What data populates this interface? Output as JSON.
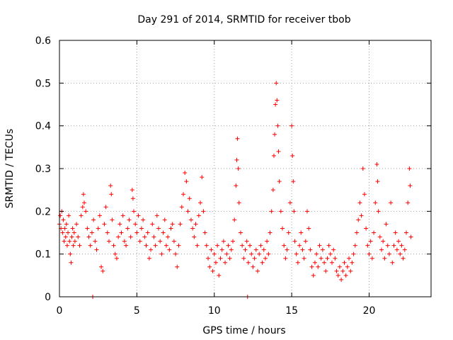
{
  "chart_data": {
    "type": "scatter",
    "title": "Day 291 of 2014, SRMTID for receiver tbob",
    "xlabel": "GPS time / hours",
    "ylabel": "SRMTID / TECUs",
    "xlim": [
      0,
      24
    ],
    "ylim": [
      0,
      0.6
    ],
    "xticks": [
      0,
      5,
      10,
      15,
      20
    ],
    "yticks": [
      0,
      0.1,
      0.2,
      0.3,
      0.4,
      0.5,
      0.6
    ],
    "ytick_labels": [
      "0",
      "0.1",
      "0.2",
      "0.3",
      "0.4",
      "0.5",
      "0.6"
    ],
    "grid": true,
    "marker": "+",
    "series": [
      {
        "name": "SRMTID",
        "color": "#ff0000",
        "points": [
          [
            0.0,
            0.17
          ],
          [
            0.05,
            0.19
          ],
          [
            0.1,
            0.16
          ],
          [
            0.15,
            0.2
          ],
          [
            0.2,
            0.15
          ],
          [
            0.25,
            0.18
          ],
          [
            0.3,
            0.13
          ],
          [
            0.35,
            0.16
          ],
          [
            0.4,
            0.14
          ],
          [
            0.45,
            0.17
          ],
          [
            0.5,
            0.12
          ],
          [
            0.55,
            0.15
          ],
          [
            0.6,
            0.19
          ],
          [
            0.65,
            0.13
          ],
          [
            0.7,
            0.1
          ],
          [
            0.75,
            0.08
          ],
          [
            0.8,
            0.14
          ],
          [
            0.85,
            0.16
          ],
          [
            0.9,
            0.12
          ],
          [
            0.95,
            0.15
          ],
          [
            1.0,
            0.13
          ],
          [
            1.1,
            0.17
          ],
          [
            1.2,
            0.14
          ],
          [
            1.3,
            0.12
          ],
          [
            1.4,
            0.19
          ],
          [
            1.5,
            0.21
          ],
          [
            1.55,
            0.24
          ],
          [
            1.6,
            0.22
          ],
          [
            1.7,
            0.2
          ],
          [
            1.8,
            0.16
          ],
          [
            1.9,
            0.14
          ],
          [
            2.0,
            0.12
          ],
          [
            2.1,
            0.15
          ],
          [
            2.15,
            0.0
          ],
          [
            2.2,
            0.18
          ],
          [
            2.3,
            0.13
          ],
          [
            2.4,
            0.11
          ],
          [
            2.5,
            0.16
          ],
          [
            2.6,
            0.19
          ],
          [
            2.7,
            0.07
          ],
          [
            2.8,
            0.06
          ],
          [
            2.9,
            0.17
          ],
          [
            3.0,
            0.21
          ],
          [
            3.1,
            0.15
          ],
          [
            3.2,
            0.13
          ],
          [
            3.3,
            0.26
          ],
          [
            3.35,
            0.24
          ],
          [
            3.4,
            0.18
          ],
          [
            3.5,
            0.12
          ],
          [
            3.6,
            0.1
          ],
          [
            3.7,
            0.09
          ],
          [
            3.8,
            0.14
          ],
          [
            3.9,
            0.17
          ],
          [
            4.0,
            0.15
          ],
          [
            4.1,
            0.19
          ],
          [
            4.2,
            0.13
          ],
          [
            4.3,
            0.12
          ],
          [
            4.4,
            0.16
          ],
          [
            4.5,
            0.18
          ],
          [
            4.6,
            0.14
          ],
          [
            4.7,
            0.25
          ],
          [
            4.75,
            0.23
          ],
          [
            4.8,
            0.2
          ],
          [
            4.9,
            0.17
          ],
          [
            5.0,
            0.15
          ],
          [
            5.1,
            0.19
          ],
          [
            5.2,
            0.13
          ],
          [
            5.3,
            0.16
          ],
          [
            5.4,
            0.18
          ],
          [
            5.5,
            0.14
          ],
          [
            5.6,
            0.12
          ],
          [
            5.7,
            0.15
          ],
          [
            5.8,
            0.09
          ],
          [
            5.9,
            0.11
          ],
          [
            6.0,
            0.17
          ],
          [
            6.1,
            0.14
          ],
          [
            6.2,
            0.12
          ],
          [
            6.3,
            0.19
          ],
          [
            6.4,
            0.16
          ],
          [
            6.5,
            0.13
          ],
          [
            6.6,
            0.1
          ],
          [
            6.7,
            0.15
          ],
          [
            6.8,
            0.18
          ],
          [
            6.9,
            0.12
          ],
          [
            7.0,
            0.14
          ],
          [
            7.1,
            0.11
          ],
          [
            7.2,
            0.16
          ],
          [
            7.3,
            0.17
          ],
          [
            7.4,
            0.13
          ],
          [
            7.5,
            0.1
          ],
          [
            7.6,
            0.07
          ],
          [
            7.7,
            0.12
          ],
          [
            7.8,
            0.17
          ],
          [
            7.9,
            0.21
          ],
          [
            8.0,
            0.24
          ],
          [
            8.1,
            0.29
          ],
          [
            8.2,
            0.27
          ],
          [
            8.3,
            0.2
          ],
          [
            8.4,
            0.23
          ],
          [
            8.5,
            0.18
          ],
          [
            8.6,
            0.16
          ],
          [
            8.7,
            0.14
          ],
          [
            8.8,
            0.17
          ],
          [
            8.9,
            0.12
          ],
          [
            9.0,
            0.19
          ],
          [
            9.1,
            0.22
          ],
          [
            9.2,
            0.28
          ],
          [
            9.3,
            0.2
          ],
          [
            9.4,
            0.15
          ],
          [
            9.5,
            0.12
          ],
          [
            9.6,
            0.09
          ],
          [
            9.7,
            0.07
          ],
          [
            9.8,
            0.11
          ],
          [
            9.9,
            0.06
          ],
          [
            10.0,
            0.1
          ],
          [
            10.1,
            0.08
          ],
          [
            10.2,
            0.12
          ],
          [
            10.3,
            0.05
          ],
          [
            10.4,
            0.09
          ],
          [
            10.5,
            0.11
          ],
          [
            10.6,
            0.13
          ],
          [
            10.7,
            0.08
          ],
          [
            10.8,
            0.1
          ],
          [
            10.9,
            0.12
          ],
          [
            11.0,
            0.09
          ],
          [
            11.1,
            0.11
          ],
          [
            11.2,
            0.13
          ],
          [
            11.3,
            0.18
          ],
          [
            11.4,
            0.26
          ],
          [
            11.45,
            0.32
          ],
          [
            11.5,
            0.37
          ],
          [
            11.55,
            0.3
          ],
          [
            11.6,
            0.22
          ],
          [
            11.7,
            0.15
          ],
          [
            11.8,
            0.12
          ],
          [
            11.9,
            0.09
          ],
          [
            12.0,
            0.11
          ],
          [
            12.1,
            0.13
          ],
          [
            12.15,
            0.0
          ],
          [
            12.2,
            0.08
          ],
          [
            12.3,
            0.12
          ],
          [
            12.4,
            0.1
          ],
          [
            12.5,
            0.07
          ],
          [
            12.6,
            0.09
          ],
          [
            12.7,
            0.11
          ],
          [
            12.8,
            0.06
          ],
          [
            12.9,
            0.1
          ],
          [
            13.0,
            0.12
          ],
          [
            13.1,
            0.08
          ],
          [
            13.2,
            0.11
          ],
          [
            13.3,
            0.09
          ],
          [
            13.4,
            0.13
          ],
          [
            13.5,
            0.1
          ],
          [
            13.6,
            0.15
          ],
          [
            13.7,
            0.2
          ],
          [
            13.8,
            0.25
          ],
          [
            13.85,
            0.33
          ],
          [
            13.9,
            0.38
          ],
          [
            13.95,
            0.45
          ],
          [
            14.0,
            0.5
          ],
          [
            14.05,
            0.46
          ],
          [
            14.1,
            0.4
          ],
          [
            14.15,
            0.34
          ],
          [
            14.2,
            0.27
          ],
          [
            14.3,
            0.2
          ],
          [
            14.4,
            0.16
          ],
          [
            14.5,
            0.12
          ],
          [
            14.6,
            0.09
          ],
          [
            14.7,
            0.11
          ],
          [
            14.8,
            0.15
          ],
          [
            14.9,
            0.22
          ],
          [
            15.0,
            0.4
          ],
          [
            15.05,
            0.33
          ],
          [
            15.1,
            0.27
          ],
          [
            15.15,
            0.2
          ],
          [
            15.2,
            0.13
          ],
          [
            15.3,
            0.1
          ],
          [
            15.4,
            0.08
          ],
          [
            15.5,
            0.12
          ],
          [
            15.6,
            0.15
          ],
          [
            15.7,
            0.11
          ],
          [
            15.8,
            0.09
          ],
          [
            15.9,
            0.13
          ],
          [
            16.0,
            0.2
          ],
          [
            16.1,
            0.16
          ],
          [
            16.2,
            0.11
          ],
          [
            16.3,
            0.07
          ],
          [
            16.4,
            0.05
          ],
          [
            16.5,
            0.08
          ],
          [
            16.6,
            0.1
          ],
          [
            16.7,
            0.07
          ],
          [
            16.8,
            0.12
          ],
          [
            16.9,
            0.09
          ],
          [
            17.0,
            0.11
          ],
          [
            17.1,
            0.08
          ],
          [
            17.2,
            0.06
          ],
          [
            17.3,
            0.09
          ],
          [
            17.4,
            0.12
          ],
          [
            17.5,
            0.1
          ],
          [
            17.6,
            0.08
          ],
          [
            17.7,
            0.11
          ],
          [
            17.8,
            0.09
          ],
          [
            17.9,
            0.06
          ],
          [
            18.0,
            0.05
          ],
          [
            18.1,
            0.07
          ],
          [
            18.2,
            0.04
          ],
          [
            18.3,
            0.06
          ],
          [
            18.4,
            0.08
          ],
          [
            18.5,
            0.05
          ],
          [
            18.6,
            0.07
          ],
          [
            18.7,
            0.09
          ],
          [
            18.8,
            0.06
          ],
          [
            18.9,
            0.08
          ],
          [
            19.0,
            0.1
          ],
          [
            19.1,
            0.12
          ],
          [
            19.2,
            0.15
          ],
          [
            19.3,
            0.18
          ],
          [
            19.4,
            0.22
          ],
          [
            19.5,
            0.19
          ],
          [
            19.6,
            0.3
          ],
          [
            19.7,
            0.24
          ],
          [
            19.8,
            0.16
          ],
          [
            19.9,
            0.12
          ],
          [
            20.0,
            0.1
          ],
          [
            20.1,
            0.13
          ],
          [
            20.2,
            0.09
          ],
          [
            20.3,
            0.15
          ],
          [
            20.4,
            0.22
          ],
          [
            20.5,
            0.31
          ],
          [
            20.55,
            0.27
          ],
          [
            20.6,
            0.2
          ],
          [
            20.7,
            0.14
          ],
          [
            20.8,
            0.11
          ],
          [
            20.9,
            0.13
          ],
          [
            21.0,
            0.09
          ],
          [
            21.1,
            0.17
          ],
          [
            21.2,
            0.12
          ],
          [
            21.3,
            0.1
          ],
          [
            21.4,
            0.22
          ],
          [
            21.5,
            0.08
          ],
          [
            21.6,
            0.12
          ],
          [
            21.7,
            0.15
          ],
          [
            21.8,
            0.11
          ],
          [
            21.9,
            0.13
          ],
          [
            22.0,
            0.1
          ],
          [
            22.1,
            0.12
          ],
          [
            22.2,
            0.09
          ],
          [
            22.3,
            0.11
          ],
          [
            22.4,
            0.15
          ],
          [
            22.5,
            0.22
          ],
          [
            22.6,
            0.3
          ],
          [
            22.65,
            0.26
          ],
          [
            22.7,
            0.14
          ]
        ]
      }
    ]
  }
}
